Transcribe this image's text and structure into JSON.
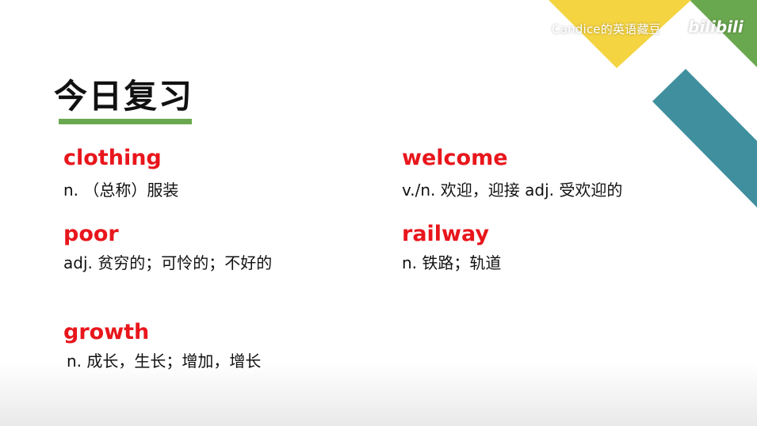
{
  "watermark": {
    "channel": "Candice的英语藏豆",
    "logo": "bilibili"
  },
  "title": "今日复习",
  "colors": {
    "accent_green": "#6aa84f",
    "word_red": "#e8161c",
    "deco_yellow": "#f5d442",
    "deco_teal": "#3f8f9e"
  },
  "vocab": [
    {
      "word": "clothing",
      "definition": "n. （总称）服装"
    },
    {
      "word": "welcome",
      "definition": "v./n.  欢迎，迎接    adj. 受欢迎的"
    },
    {
      "word": "poor",
      "definition": "adj. 贫穷的；可怜的；不好的"
    },
    {
      "word": "railway",
      "definition": "n. 铁路；轨道"
    },
    {
      "word": "growth",
      "definition": "n. 成长，生长；增加，增长"
    }
  ]
}
